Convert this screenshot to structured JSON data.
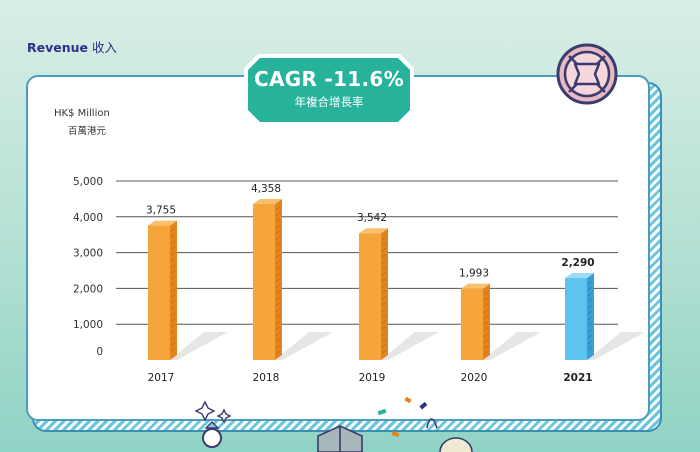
{
  "header": {
    "title_en": "Revenue",
    "title_zh": "收入"
  },
  "badge": {
    "title": "CAGR -11.6%",
    "subtitle": "年複合增長率"
  },
  "colors": {
    "orange": "#f6a53a",
    "orange_dark": "#e2851f",
    "blue": "#5ec4ef",
    "blue_dark": "#3a9ed6",
    "teal": "#27b39b",
    "navy": "#2d2f8a"
  },
  "chart_data": {
    "type": "bar",
    "unit_en": "HK$ Million",
    "unit_zh": "百萬港元",
    "categories": [
      "2017",
      "2018",
      "2019",
      "2020",
      "2021"
    ],
    "values": [
      3755,
      4358,
      3542,
      1993,
      2290
    ],
    "value_labels": [
      "3,755",
      "4,358",
      "3,542",
      "1,993",
      "2,290"
    ],
    "highlight_index": 4,
    "ylim": [
      0,
      5000
    ],
    "yticks": [
      0,
      1000,
      2000,
      3000,
      4000,
      5000
    ],
    "ytick_labels": [
      "0",
      "1,000",
      "2,000",
      "3,000",
      "4,000",
      "5,000"
    ],
    "grid": true,
    "legend": false
  }
}
